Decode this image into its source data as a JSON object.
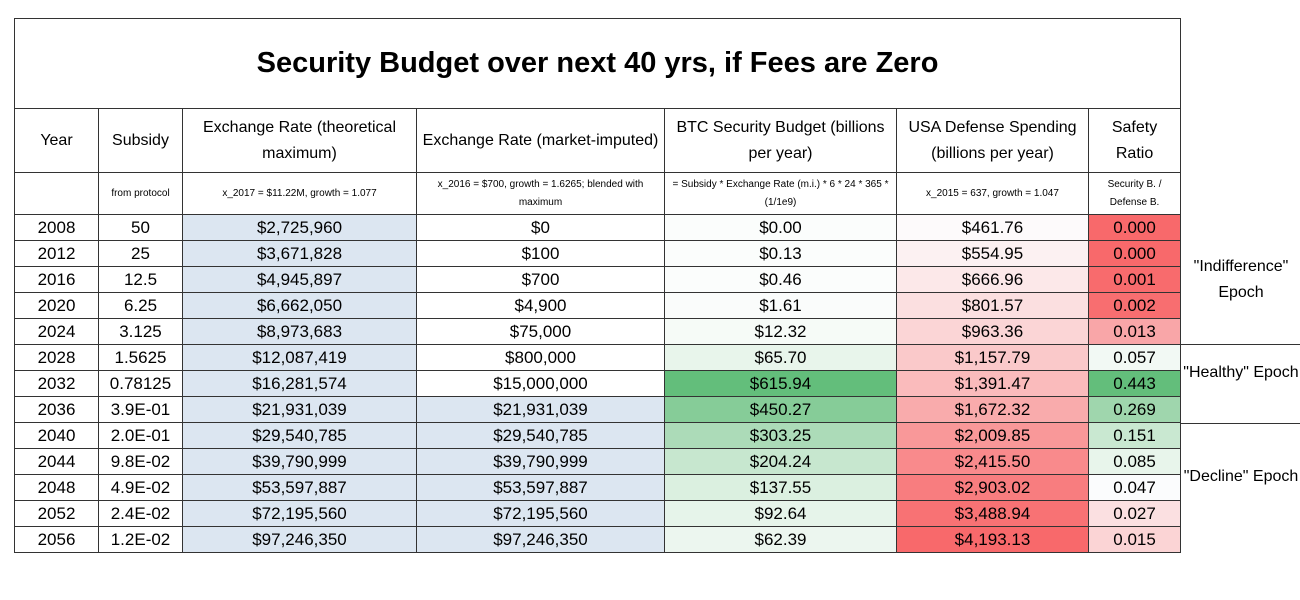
{
  "title": "Security Budget over next 40 yrs, if Fees are Zero",
  "headers": [
    "Year",
    "Subsidy",
    "Exchange Rate (theoretical maximum)",
    "Exchange Rate (market-imputed)",
    "BTC Security Budget (billions per year)",
    "USA Defense Spending (billions per year)",
    "Safety Ratio"
  ],
  "subheaders": [
    "",
    "from protocol",
    "x_2017 = $11.22M, growth = 1.077",
    "x_2016 = $700, growth = 1.6265; blended with maximum",
    "= Subsidy *  Exchange Rate (m.i.) * 6 * 24 * 365 * (1/1e9)",
    "x_2015 = 637, growth = 1.047",
    "Security B. / Defense B."
  ],
  "rows": [
    [
      "2008",
      "50",
      "$2,725,960",
      "$0",
      "$0.00",
      "$461.76",
      "0.000"
    ],
    [
      "2012",
      "25",
      "$3,671,828",
      "$100",
      "$0.13",
      "$554.95",
      "0.000"
    ],
    [
      "2016",
      "12.5",
      "$4,945,897",
      "$700",
      "$0.46",
      "$666.96",
      "0.001"
    ],
    [
      "2020",
      "6.25",
      "$6,662,050",
      "$4,900",
      "$1.61",
      "$801.57",
      "0.002"
    ],
    [
      "2024",
      "3.125",
      "$8,973,683",
      "$75,000",
      "$12.32",
      "$963.36",
      "0.013"
    ],
    [
      "2028",
      "1.5625",
      "$12,087,419",
      "$800,000",
      "$65.70",
      "$1,157.79",
      "0.057"
    ],
    [
      "2032",
      "0.78125",
      "$16,281,574",
      "$15,000,000",
      "$615.94",
      "$1,391.47",
      "0.443"
    ],
    [
      "2036",
      "3.9E-01",
      "$21,931,039",
      "$21,931,039",
      "$450.27",
      "$1,672.32",
      "0.269"
    ],
    [
      "2040",
      "2.0E-01",
      "$29,540,785",
      "$29,540,785",
      "$303.25",
      "$2,009.85",
      "0.151"
    ],
    [
      "2044",
      "9.8E-02",
      "$39,790,999",
      "$39,790,999",
      "$204.24",
      "$2,415.50",
      "0.085"
    ],
    [
      "2048",
      "4.9E-02",
      "$53,597,887",
      "$53,597,887",
      "$137.55",
      "$2,903.02",
      "0.047"
    ],
    [
      "2052",
      "2.4E-02",
      "$72,195,560",
      "$72,195,560",
      "$92.64",
      "$3,488.94",
      "0.027"
    ],
    [
      "2056",
      "1.2E-02",
      "$97,246,350",
      "$97,246,350",
      "$62.39",
      "$4,193.13",
      "0.015"
    ]
  ],
  "cell_colors": [
    [
      "#ffffff",
      "#fbfdfc",
      "#fdfafb",
      "#f8696b"
    ],
    [
      "#ffffff",
      "#fbfdfc",
      "#fcf1f2",
      "#f8696b"
    ],
    [
      "#ffffff",
      "#fbfdfc",
      "#fce8e9",
      "#f86b6d"
    ],
    [
      "#ffffff",
      "#fafcfb",
      "#fbdfe0",
      "#f86e70"
    ],
    [
      "#ffffff",
      "#f6fbf7",
      "#fbd5d6",
      "#f9a6a8"
    ],
    [
      "#ffffff",
      "#e8f5eb",
      "#fac9ca",
      "#f2f9f4"
    ],
    [
      "#ffffff",
      "#63be7b",
      "#fabbbc",
      "#63be7b"
    ],
    [
      "#dce6f1",
      "#86cc98",
      "#f9abac",
      "#9fd6ad"
    ],
    [
      "#dce6f1",
      "#acdbb8",
      "#f99899",
      "#c9e8d1"
    ],
    [
      "#dce6f1",
      "#c7e7cf",
      "#f98a8c",
      "#e8f5eb"
    ],
    [
      "#dce6f1",
      "#dbf0e0",
      "#f87d7f",
      "#fbfcfd"
    ],
    [
      "#dce6f1",
      "#e6f4ea",
      "#f87274",
      "#fbe0e1"
    ],
    [
      "#dce6f1",
      "#ecf6ef",
      "#f8696b",
      "#fbd4d5"
    ]
  ],
  "epochs": [
    "\"Indifference\" Epoch",
    "\"Healthy\" Epoch",
    "\"Decline\" Epoch"
  ]
}
